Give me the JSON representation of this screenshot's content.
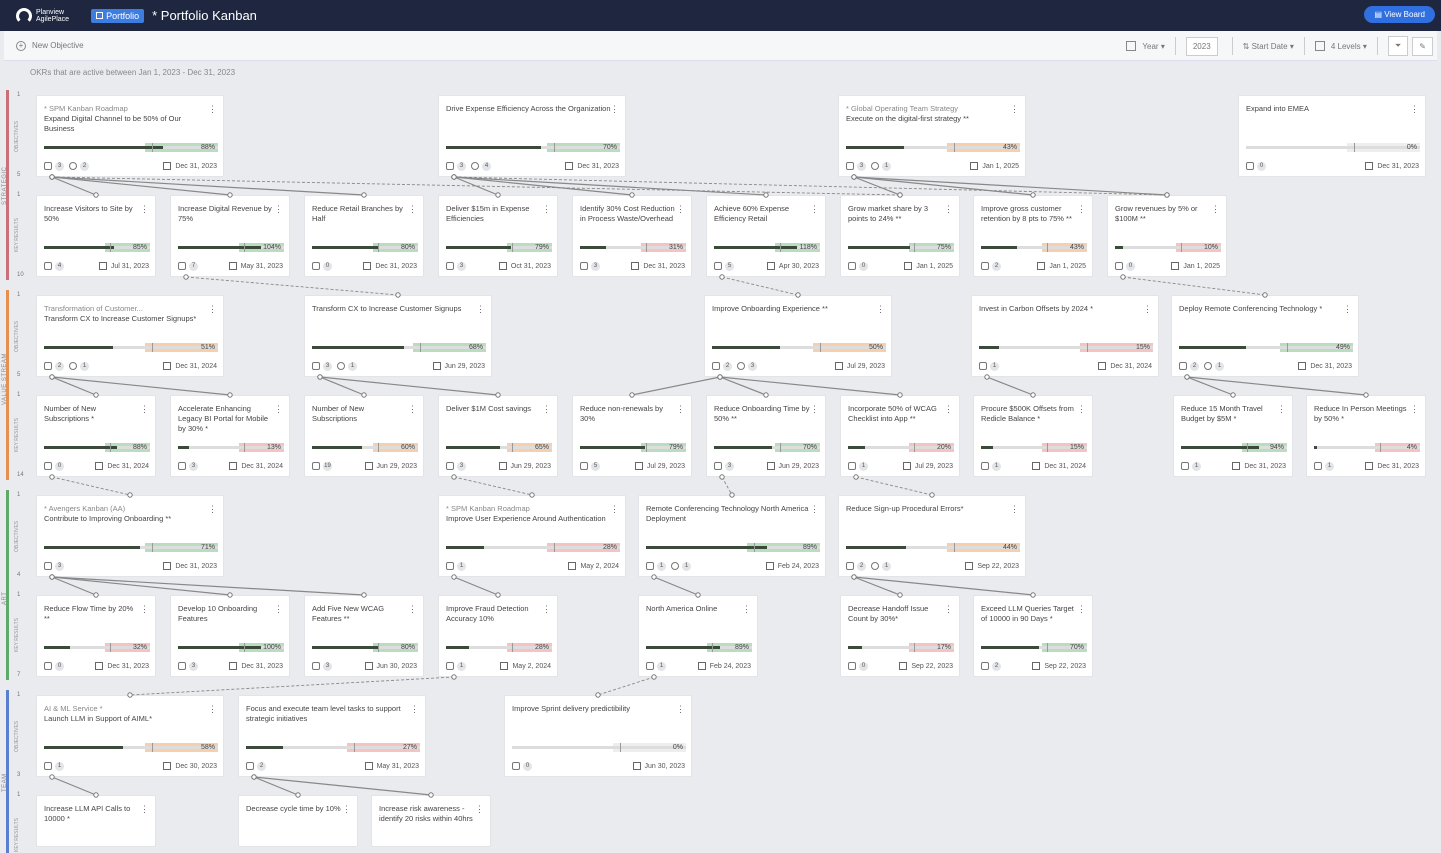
{
  "header": {
    "logo_line1": "Planview",
    "logo_line2": "AgilePlace",
    "portfolio_badge": "Portfolio",
    "board_title": "* Portfolio Kanban",
    "view_board": "View Board"
  },
  "toolbar": {
    "new_objective": "New Objective",
    "period_select": "Year",
    "year_value": "2023",
    "sort_label": "Start Date",
    "levels_select": "4 Levels"
  },
  "subnote": "OKRs that are active between Jan 1, 2023 - Dec 31, 2023",
  "lanes": [
    {
      "name": "STRATEGIC",
      "color": "#c9707a"
    },
    {
      "name": "VALUE STREAM",
      "color": "#e59050"
    },
    {
      "name": "ART",
      "color": "#5eaa6a"
    },
    {
      "name": "TEAM",
      "color": "#5b7fcf"
    }
  ],
  "row_labels": {
    "objectives": "OBJECTIVES",
    "key_results": "KEY RESULTS"
  },
  "row_numbers": [
    "1",
    "5",
    "1",
    "10",
    "1",
    "5",
    "1",
    "14",
    "1",
    "4",
    "1",
    "7",
    "1",
    "3",
    "1"
  ],
  "cards": [
    {
      "pre": "* SPM Kanban Roadmap",
      "title": "Expand Digital Channel to be 50% of Our Business",
      "pct": "88%",
      "progress": 0.88,
      "a": "3",
      "b": "2",
      "date": "Dec 31, 2023",
      "color": "#7fc28a"
    },
    {
      "pre": "",
      "title": "Drive Expense Efficiency Across the Organization",
      "pct": "70%",
      "progress": 0.7,
      "a": "3",
      "b": "4",
      "date": "Dec 31, 2023",
      "color": "#7fc28a"
    },
    {
      "pre": "* Global Operating Team Strategy",
      "title": "Execute on the digital-first strategy **",
      "pct": "43%",
      "progress": 0.43,
      "a": "3",
      "b": "1",
      "date": "Jan 1, 2025",
      "color": "#f0a868"
    },
    {
      "pre": "",
      "title": "Expand into EMEA",
      "pct": "0%",
      "progress": 0,
      "a": "0",
      "b": "",
      "date": "Dec 31, 2023",
      "color": "#e0e0e0"
    },
    {
      "pre": "",
      "title": "Increase Visitors to Site by 50%",
      "pct": "85%",
      "progress": 0.85,
      "a": "4",
      "b": "",
      "date": "Jul 31, 2023",
      "color": "#7fc28a"
    },
    {
      "pre": "",
      "title": "Increase Digital Revenue by 75%",
      "pct": "104%",
      "progress": 1.0,
      "a": "7",
      "b": "",
      "date": "May 31, 2023",
      "color": "#7fc28a"
    },
    {
      "pre": "",
      "title": "Reduce Retail Branches by Half",
      "pct": "80%",
      "progress": 0.8,
      "a": "0",
      "b": "",
      "date": "Dec 31, 2023",
      "color": "#7fc28a"
    },
    {
      "pre": "",
      "title": "Deliver $15m in Expense Efficiencies",
      "pct": "79%",
      "progress": 0.79,
      "a": "3",
      "b": "",
      "date": "Oct 31, 2023",
      "color": "#7fc28a"
    },
    {
      "pre": "",
      "title": "Identify 30% Cost Reduction in Process Waste/Overhead",
      "pct": "31%",
      "progress": 0.31,
      "a": "3",
      "b": "",
      "date": "Dec 31, 2023",
      "color": "#f09090"
    },
    {
      "pre": "",
      "title": "Achieve 60% Expense Efficiency Retail",
      "pct": "118%",
      "progress": 1.0,
      "a": "5",
      "b": "",
      "date": "Apr 30, 2023",
      "color": "#7fc28a"
    },
    {
      "pre": "",
      "title": "Grow market share by 3 points to 24% **",
      "pct": "75%",
      "progress": 0.75,
      "a": "0",
      "b": "",
      "date": "Jan 1, 2025",
      "color": "#7fc28a"
    },
    {
      "pre": "",
      "title": "Improve gross customer retention by 8 pts to 75% **",
      "pct": "43%",
      "progress": 0.43,
      "a": "2",
      "b": "",
      "date": "Jan 1, 2025",
      "color": "#f0a868"
    },
    {
      "pre": "",
      "title": "Grow revenues by 5% or $100M **",
      "pct": "10%",
      "progress": 0.1,
      "a": "0",
      "b": "",
      "date": "Jan 1, 2025",
      "color": "#f09090"
    },
    {
      "pre": "Transformation of Customer...",
      "title": "Transform CX to Increase Customer Signups*",
      "pct": "51%",
      "progress": 0.51,
      "a": "2",
      "b": "1",
      "date": "Dec 31, 2024",
      "color": "#f0a868"
    },
    {
      "pre": "",
      "title": "Transform CX to Increase Customer Signups",
      "pct": "68%",
      "progress": 0.68,
      "a": "3",
      "b": "1",
      "date": "Jun 29, 2023",
      "color": "#7fc28a"
    },
    {
      "pre": "",
      "title": "Improve Onboarding Experience **",
      "pct": "50%",
      "progress": 0.5,
      "a": "2",
      "b": "3",
      "date": "Jul 29, 2023",
      "color": "#f0a868"
    },
    {
      "pre": "",
      "title": "Invest in Carbon Offsets by 2024 *",
      "pct": "15%",
      "progress": 0.15,
      "a": "1",
      "b": "",
      "date": "Dec 31, 2024",
      "color": "#f09090"
    },
    {
      "pre": "",
      "title": "Deploy Remote Conferencing Technology *",
      "pct": "49%",
      "progress": 0.49,
      "a": "2",
      "b": "1",
      "date": "Dec 31, 2023",
      "color": "#7fc28a"
    },
    {
      "pre": "",
      "title": "Number of New Subscriptions *",
      "pct": "88%",
      "progress": 0.88,
      "a": "0",
      "b": "",
      "date": "Dec 31, 2024",
      "color": "#7fc28a"
    },
    {
      "pre": "",
      "title": "Accelerate Enhancing Legacy BI Portal for Mobile by 30% *",
      "pct": "13%",
      "progress": 0.13,
      "a": "3",
      "b": "",
      "date": "Dec 31, 2024",
      "color": "#f09090"
    },
    {
      "pre": "",
      "title": "Number of New Subscriptions",
      "pct": "60%",
      "progress": 0.6,
      "a": "19",
      "b": "",
      "date": "Jun 29, 2023",
      "color": "#f0a868"
    },
    {
      "pre": "",
      "title": "Deliver $1M Cost savings",
      "pct": "65%",
      "progress": 0.65,
      "a": "3",
      "b": "",
      "date": "Jun 29, 2023",
      "color": "#f0a868"
    },
    {
      "pre": "",
      "title": "Reduce non-renewals by 30%",
      "pct": "79%",
      "progress": 0.79,
      "a": "5",
      "b": "",
      "date": "Jul 29, 2023",
      "color": "#7fc28a"
    },
    {
      "pre": "",
      "title": "Reduce Onboarding Time by 50% **",
      "pct": "70%",
      "progress": 0.7,
      "a": "3",
      "b": "",
      "date": "Jun 29, 2023",
      "color": "#7fc28a"
    },
    {
      "pre": "",
      "title": "Incorporate 50% of WCAG Checklist into App **",
      "pct": "20%",
      "progress": 0.2,
      "a": "1",
      "b": "",
      "date": "Jul 29, 2023",
      "color": "#f09090"
    },
    {
      "pre": "",
      "title": "Procure $500K Offsets from Redicle Balance *",
      "pct": "15%",
      "progress": 0.15,
      "a": "1",
      "b": "",
      "date": "Dec 31, 2024",
      "color": "#f09090"
    },
    {
      "pre": "",
      "title": "Reduce 15 Month Travel Budget by $5M *",
      "pct": "94%",
      "progress": 0.94,
      "a": "1",
      "b": "",
      "date": "Dec 31, 2023",
      "color": "#7fc28a"
    },
    {
      "pre": "",
      "title": "Reduce In Person Meetings by 50% *",
      "pct": "4%",
      "progress": 0.04,
      "a": "1",
      "b": "",
      "date": "Dec 31, 2023",
      "color": "#f09090"
    },
    {
      "pre": "* Avengers Kanban (AA)",
      "title": "Contribute to Improving Onboarding **",
      "pct": "71%",
      "progress": 0.71,
      "a": "3",
      "b": "",
      "date": "Dec 31, 2023",
      "color": "#7fc28a"
    },
    {
      "pre": "* SPM Kanban Roadmap",
      "title": "Improve User Experience Around Authentication",
      "pct": "28%",
      "progress": 0.28,
      "a": "1",
      "b": "",
      "date": "May 2, 2024",
      "color": "#f09090"
    },
    {
      "pre": "",
      "title": "Remote Conferencing Technology North America Deployment",
      "pct": "89%",
      "progress": 0.89,
      "a": "1",
      "b": "1",
      "date": "Feb 24, 2023",
      "color": "#7fc28a"
    },
    {
      "pre": "",
      "title": "Reduce Sign-up Procedural Errors*",
      "pct": "44%",
      "progress": 0.44,
      "a": "2",
      "b": "1",
      "date": "Sep 22, 2023",
      "color": "#f0a868"
    },
    {
      "pre": "",
      "title": "Reduce Flow Time by 20% **",
      "pct": "32%",
      "progress": 0.32,
      "a": "0",
      "b": "",
      "date": "Dec 31, 2023",
      "color": "#f09090"
    },
    {
      "pre": "",
      "title": "Develop 10 Onboarding Features",
      "pct": "100%",
      "progress": 1.0,
      "a": "3",
      "b": "",
      "date": "Dec 31, 2023",
      "color": "#7fc28a"
    },
    {
      "pre": "",
      "title": "Add Five New WCAG Features **",
      "pct": "80%",
      "progress": 0.8,
      "a": "3",
      "b": "",
      "date": "Jun 30, 2023",
      "color": "#7fc28a"
    },
    {
      "pre": "",
      "title": "Improve Fraud Detection Accuracy 10%",
      "pct": "28%",
      "progress": 0.28,
      "a": "1",
      "b": "",
      "date": "May 2, 2024",
      "color": "#f09090"
    },
    {
      "pre": "",
      "title": "North America Online",
      "pct": "89%",
      "progress": 0.89,
      "a": "1",
      "b": "",
      "date": "Feb 24, 2023",
      "color": "#7fc28a"
    },
    {
      "pre": "",
      "title": "Decrease Handoff Issue Count by 30%*",
      "pct": "17%",
      "progress": 0.17,
      "a": "0",
      "b": "",
      "date": "Sep 22, 2023",
      "color": "#f09090"
    },
    {
      "pre": "",
      "title": "Exceed LLM Queries Target of 10000 in 90 Days *",
      "pct": "70%",
      "progress": 0.7,
      "a": "2",
      "b": "",
      "date": "Sep 22, 2023",
      "color": "#7fc28a"
    },
    {
      "pre": "AI & ML Service *",
      "title": "Launch LLM in Support of AIML*",
      "pct": "58%",
      "progress": 0.58,
      "a": "1",
      "b": "",
      "date": "Dec 30, 2023",
      "color": "#f0a868"
    },
    {
      "pre": "",
      "title": "Focus and execute team level tasks to support strategic initiatives",
      "pct": "27%",
      "progress": 0.27,
      "a": "2",
      "b": "",
      "date": "May 31, 2023",
      "color": "#f09090"
    },
    {
      "pre": "",
      "title": "Improve Sprint delivery predictibility",
      "pct": "0%",
      "progress": 0,
      "a": "0",
      "b": "",
      "date": "Jun 30, 2023",
      "color": "#e0e0e0"
    },
    {
      "pre": "",
      "title": "Increase LLM API Calls to 10000 *",
      "pct": "",
      "progress": 0,
      "a": "",
      "b": "",
      "date": "",
      "color": "#e0e0e0"
    },
    {
      "pre": "",
      "title": "Decrease cycle time by 10%",
      "pct": "",
      "progress": 0,
      "a": "",
      "b": "",
      "date": "",
      "color": "#e0e0e0"
    },
    {
      "pre": "",
      "title": "Increase risk awareness - identify 20 risks within 40hrs",
      "pct": "",
      "progress": 0,
      "a": "",
      "b": "",
      "date": "",
      "color": "#e0e0e0"
    }
  ]
}
